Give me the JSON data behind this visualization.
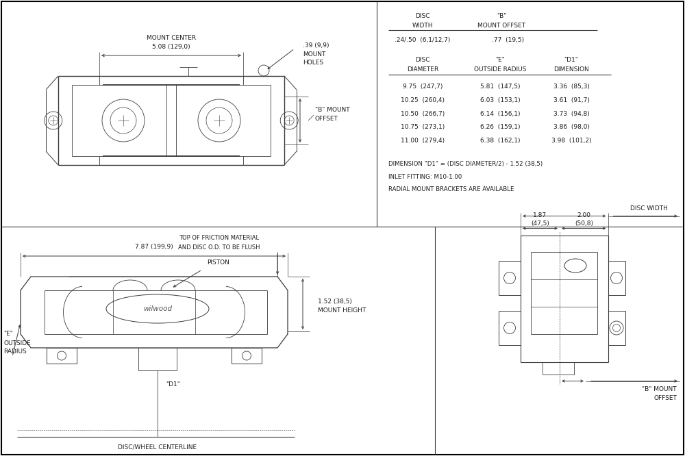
{
  "bg_color": "#ffffff",
  "line_color": "#3a3a3a",
  "text_color": "#1a1a1a",
  "border_color": "#000000",
  "table": {
    "rows": [
      [
        "9.75  (247,7)",
        "5.81  (147,5)",
        "3.36  (85,3)"
      ],
      [
        "10.25  (260,4)",
        "6.03  (153,1)",
        "3.61  (91,7)"
      ],
      [
        "10.50  (266,7)",
        "6.14  (156,1)",
        "3.73  (94,8)"
      ],
      [
        "10.75  (273,1)",
        "6.26  (159,1)",
        "3.86  (98,0)"
      ],
      [
        "11.00  (279,4)",
        "6.38  (162,1)",
        "3.98  (101,2)"
      ]
    ],
    "notes": [
      "DIMENSION \"D1\" = (DISC DIAMETER/2) - 1.52 (38,5)",
      "INLET FITTING: M10-1.00",
      "RADIAL MOUNT BRACKETS ARE AVAILABLE"
    ]
  }
}
